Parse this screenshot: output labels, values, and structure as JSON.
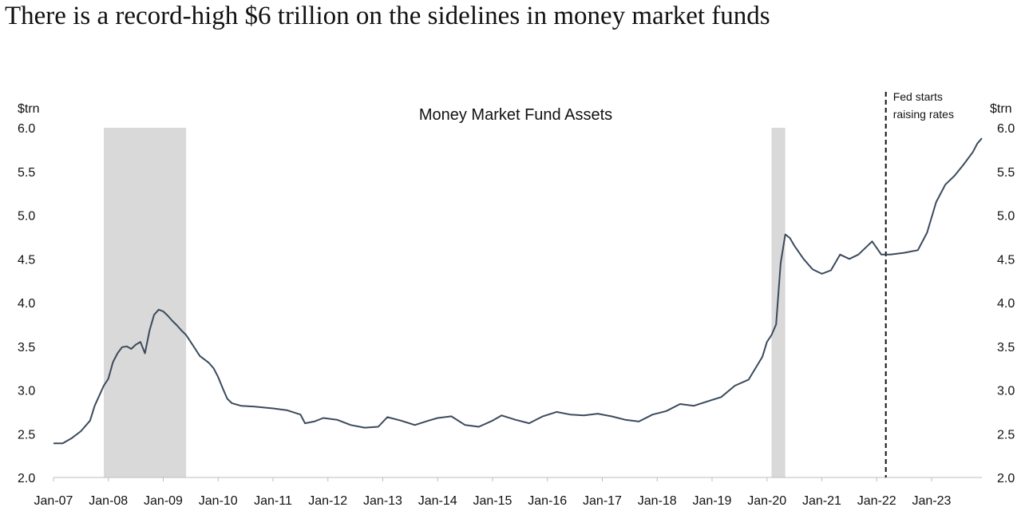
{
  "headline": "There is a record-high $6 trillion on the sidelines in money market funds",
  "chart_data": {
    "type": "line",
    "title": "Money Market Fund Assets",
    "ylabel_left": "$trn",
    "ylabel_right": "$trn",
    "ylim": [
      2.0,
      6.0
    ],
    "yticks": [
      "2.0",
      "2.5",
      "3.0",
      "3.5",
      "4.0",
      "4.5",
      "5.0",
      "5.5",
      "6.0"
    ],
    "xlim": [
      "2007-01",
      "2023-12"
    ],
    "xticks": [
      "Jan-07",
      "Jan-08",
      "Jan-09",
      "Jan-10",
      "Jan-11",
      "Jan-12",
      "Jan-13",
      "Jan-14",
      "Jan-15",
      "Jan-16",
      "Jan-17",
      "Jan-18",
      "Jan-19",
      "Jan-20",
      "Jan-21",
      "Jan-22",
      "Jan-23"
    ],
    "shaded_periods": [
      {
        "start": "2007-12",
        "end": "2009-06"
      },
      {
        "start": "2020-02",
        "end": "2020-05"
      }
    ],
    "annotation": {
      "date": "2022-03",
      "lines": [
        "Fed starts",
        "raising rates"
      ]
    },
    "line_color": "#3b4a5c",
    "shade_color": "#d9d9d9",
    "series": [
      {
        "points": [
          [
            "2007-01",
            2.39
          ],
          [
            "2007-03",
            2.39
          ],
          [
            "2007-05",
            2.45
          ],
          [
            "2007-07",
            2.53
          ],
          [
            "2007-09",
            2.65
          ],
          [
            "2007-10",
            2.82
          ],
          [
            "2007-12",
            3.05
          ],
          [
            "2008-01",
            3.13
          ],
          [
            "2008-02",
            3.32
          ],
          [
            "2008-03",
            3.42
          ],
          [
            "2008-04",
            3.49
          ],
          [
            "2008-05",
            3.5
          ],
          [
            "2008-06",
            3.47
          ],
          [
            "2008-07",
            3.52
          ],
          [
            "2008-08",
            3.55
          ],
          [
            "2008-09",
            3.42
          ],
          [
            "2008-10",
            3.68
          ],
          [
            "2008-11",
            3.86
          ],
          [
            "2008-12",
            3.92
          ],
          [
            "2009-01",
            3.9
          ],
          [
            "2009-02",
            3.85
          ],
          [
            "2009-03",
            3.79
          ],
          [
            "2009-04",
            3.74
          ],
          [
            "2009-05",
            3.68
          ],
          [
            "2009-06",
            3.63
          ],
          [
            "2009-07",
            3.55
          ],
          [
            "2009-08",
            3.47
          ],
          [
            "2009-09",
            3.39
          ],
          [
            "2009-10",
            3.35
          ],
          [
            "2009-11",
            3.31
          ],
          [
            "2009-12",
            3.25
          ],
          [
            "2010-01",
            3.15
          ],
          [
            "2010-02",
            3.02
          ],
          [
            "2010-03",
            2.9
          ],
          [
            "2010-04",
            2.85
          ],
          [
            "2010-06",
            2.82
          ],
          [
            "2010-09",
            2.81
          ],
          [
            "2011-01",
            2.79
          ],
          [
            "2011-04",
            2.77
          ],
          [
            "2011-07",
            2.72
          ],
          [
            "2011-08",
            2.62
          ],
          [
            "2011-10",
            2.64
          ],
          [
            "2011-12",
            2.68
          ],
          [
            "2012-03",
            2.66
          ],
          [
            "2012-06",
            2.6
          ],
          [
            "2012-09",
            2.57
          ],
          [
            "2012-12",
            2.58
          ],
          [
            "2013-02",
            2.69
          ],
          [
            "2013-05",
            2.65
          ],
          [
            "2013-08",
            2.6
          ],
          [
            "2013-11",
            2.65
          ],
          [
            "2014-01",
            2.68
          ],
          [
            "2014-04",
            2.7
          ],
          [
            "2014-07",
            2.6
          ],
          [
            "2014-10",
            2.58
          ],
          [
            "2015-01",
            2.65
          ],
          [
            "2015-03",
            2.71
          ],
          [
            "2015-06",
            2.66
          ],
          [
            "2015-09",
            2.62
          ],
          [
            "2015-12",
            2.7
          ],
          [
            "2016-03",
            2.75
          ],
          [
            "2016-06",
            2.72
          ],
          [
            "2016-09",
            2.71
          ],
          [
            "2016-12",
            2.73
          ],
          [
            "2017-03",
            2.7
          ],
          [
            "2017-06",
            2.66
          ],
          [
            "2017-09",
            2.64
          ],
          [
            "2017-12",
            2.72
          ],
          [
            "2018-03",
            2.76
          ],
          [
            "2018-06",
            2.84
          ],
          [
            "2018-09",
            2.82
          ],
          [
            "2018-12",
            2.87
          ],
          [
            "2019-03",
            2.92
          ],
          [
            "2019-06",
            3.05
          ],
          [
            "2019-09",
            3.12
          ],
          [
            "2019-12",
            3.38
          ],
          [
            "2020-01",
            3.55
          ],
          [
            "2020-02",
            3.63
          ],
          [
            "2020-03",
            3.75
          ],
          [
            "2020-04",
            4.45
          ],
          [
            "2020-05",
            4.78
          ],
          [
            "2020-06",
            4.74
          ],
          [
            "2020-07",
            4.65
          ],
          [
            "2020-09",
            4.5
          ],
          [
            "2020-11",
            4.38
          ],
          [
            "2021-01",
            4.33
          ],
          [
            "2021-03",
            4.37
          ],
          [
            "2021-05",
            4.55
          ],
          [
            "2021-07",
            4.5
          ],
          [
            "2021-09",
            4.55
          ],
          [
            "2021-12",
            4.7
          ],
          [
            "2022-02",
            4.55
          ],
          [
            "2022-04",
            4.55
          ],
          [
            "2022-07",
            4.57
          ],
          [
            "2022-10",
            4.6
          ],
          [
            "2022-12",
            4.8
          ],
          [
            "2023-02",
            5.15
          ],
          [
            "2023-04",
            5.35
          ],
          [
            "2023-06",
            5.45
          ],
          [
            "2023-08",
            5.58
          ],
          [
            "2023-10",
            5.72
          ],
          [
            "2023-11",
            5.82
          ],
          [
            "2023-12",
            5.88
          ]
        ]
      }
    ]
  }
}
